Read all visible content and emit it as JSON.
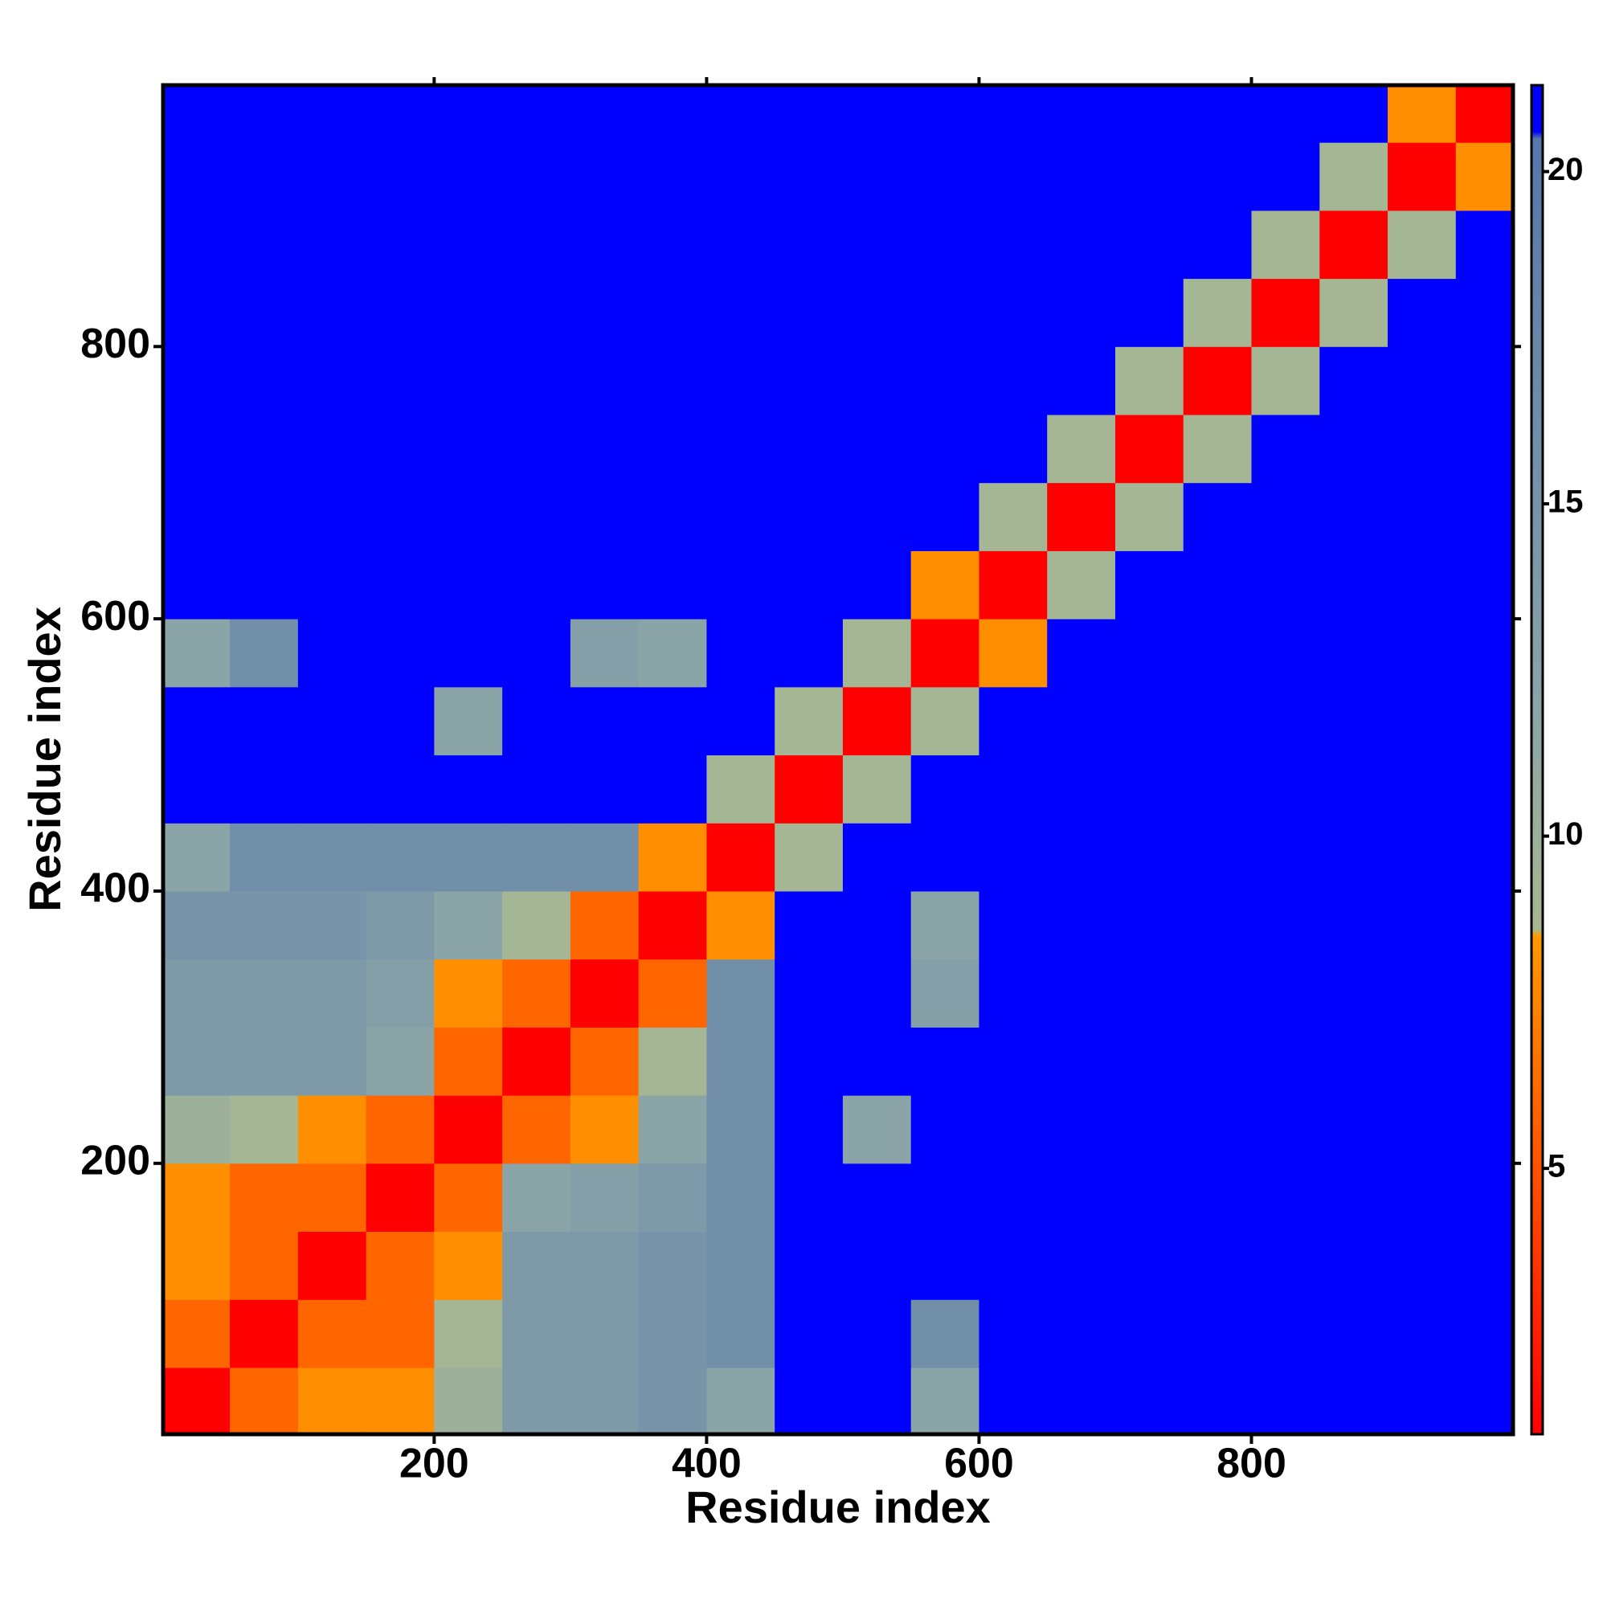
{
  "chart_data": {
    "type": "heatmap",
    "x_label": "Residue index",
    "y_label": "Residue index",
    "bins": [
      1,
      50,
      100,
      150,
      200,
      250,
      300,
      350,
      400,
      450,
      500,
      550,
      600,
      650,
      700,
      750,
      800,
      850,
      900,
      950,
      992
    ],
    "matrix": [
      [
        1,
        6,
        8,
        8,
        10,
        14,
        14,
        15,
        12,
        21,
        21,
        12,
        21,
        21,
        21,
        21,
        21,
        21,
        21,
        21
      ],
      [
        6,
        1,
        6,
        6,
        9,
        14,
        14,
        15,
        16,
        21,
        21,
        16,
        21,
        21,
        21,
        21,
        21,
        21,
        21,
        21
      ],
      [
        8,
        6,
        1,
        6,
        8,
        14,
        14,
        15,
        16,
        21,
        21,
        21,
        21,
        21,
        21,
        21,
        21,
        21,
        21,
        21
      ],
      [
        8,
        6,
        6,
        1,
        6,
        12,
        13,
        14,
        16,
        21,
        21,
        21,
        21,
        21,
        21,
        21,
        21,
        21,
        21,
        21
      ],
      [
        10,
        9,
        8,
        6,
        1,
        6,
        8,
        12,
        16,
        21,
        12,
        21,
        21,
        21,
        21,
        21,
        21,
        21,
        21,
        21
      ],
      [
        14,
        14,
        14,
        12,
        6,
        1,
        6,
        9,
        16,
        21,
        21,
        21,
        21,
        21,
        21,
        21,
        21,
        21,
        21,
        21
      ],
      [
        14,
        14,
        14,
        13,
        8,
        6,
        1,
        6,
        16,
        21,
        21,
        13,
        21,
        21,
        21,
        21,
        21,
        21,
        21,
        21
      ],
      [
        15,
        15,
        15,
        14,
        12,
        9,
        6,
        1,
        8,
        21,
        21,
        12,
        21,
        21,
        21,
        21,
        21,
        21,
        21,
        21
      ],
      [
        12,
        16,
        16,
        16,
        16,
        16,
        16,
        8,
        1,
        9,
        21,
        21,
        21,
        21,
        21,
        21,
        21,
        21,
        21,
        21
      ],
      [
        21,
        21,
        21,
        21,
        21,
        21,
        21,
        21,
        9,
        1,
        9,
        21,
        21,
        21,
        21,
        21,
        21,
        21,
        21,
        21
      ],
      [
        21,
        21,
        21,
        21,
        12,
        21,
        21,
        21,
        21,
        9,
        1,
        9,
        21,
        21,
        21,
        21,
        21,
        21,
        21,
        21
      ],
      [
        12,
        16,
        21,
        21,
        21,
        21,
        13,
        12,
        21,
        21,
        9,
        1,
        8,
        21,
        21,
        21,
        21,
        21,
        21,
        21
      ],
      [
        21,
        21,
        21,
        21,
        21,
        21,
        21,
        21,
        21,
        21,
        21,
        8,
        1,
        9,
        21,
        21,
        21,
        21,
        21,
        21
      ],
      [
        21,
        21,
        21,
        21,
        21,
        21,
        21,
        21,
        21,
        21,
        21,
        21,
        9,
        1,
        9,
        21,
        21,
        21,
        21,
        21
      ],
      [
        21,
        21,
        21,
        21,
        21,
        21,
        21,
        21,
        21,
        21,
        21,
        21,
        21,
        9,
        1,
        9,
        21,
        21,
        21,
        21
      ],
      [
        21,
        21,
        21,
        21,
        21,
        21,
        21,
        21,
        21,
        21,
        21,
        21,
        21,
        21,
        9,
        1,
        9,
        21,
        21,
        21
      ],
      [
        21,
        21,
        21,
        21,
        21,
        21,
        21,
        21,
        21,
        21,
        21,
        21,
        21,
        21,
        21,
        9,
        1,
        9,
        21,
        21
      ],
      [
        21,
        21,
        21,
        21,
        21,
        21,
        21,
        21,
        21,
        21,
        21,
        21,
        21,
        21,
        21,
        21,
        9,
        1,
        9,
        21
      ],
      [
        21,
        21,
        21,
        21,
        21,
        21,
        21,
        21,
        21,
        21,
        21,
        21,
        21,
        21,
        21,
        21,
        21,
        9,
        1,
        8
      ],
      [
        21,
        21,
        21,
        21,
        21,
        21,
        21,
        21,
        21,
        21,
        21,
        21,
        21,
        21,
        21,
        21,
        21,
        21,
        8,
        1
      ]
    ],
    "xlim": [
      1,
      992
    ],
    "ylim": [
      1,
      992
    ],
    "xticks": [
      200,
      400,
      600,
      800
    ],
    "yticks": [
      200,
      400,
      600,
      800
    ],
    "colorbar": {
      "lim": [
        1,
        21.3
      ],
      "ticks": [
        5,
        10,
        15,
        20
      ],
      "colorscale": [
        [
          1,
          "#ff0000"
        ],
        [
          8.5,
          "#ff9900"
        ],
        [
          8.6,
          "#a8b890"
        ],
        [
          12,
          "#8aa4a8"
        ],
        [
          20.5,
          "#5577aa"
        ],
        [
          20.6,
          "#0000ff"
        ],
        [
          21.3,
          "#0000ff"
        ]
      ]
    }
  }
}
